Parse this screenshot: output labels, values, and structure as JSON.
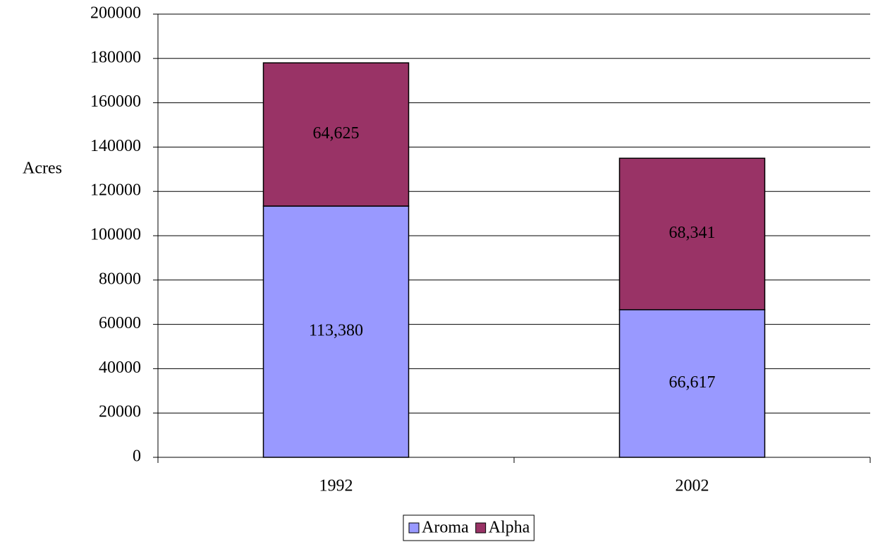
{
  "chart_data": {
    "type": "stacked_bar",
    "y_label": "Acres",
    "categories": [
      "1992",
      "2002"
    ],
    "series": [
      {
        "name": "Aroma",
        "color": "#9999ff",
        "values": [
          113380,
          66617
        ],
        "value_labels": [
          "113,380",
          "66,617"
        ]
      },
      {
        "name": "Alpha",
        "color": "#993366",
        "values": [
          64625,
          68341
        ],
        "value_labels": [
          "64,625",
          "68,341"
        ]
      }
    ],
    "ylim": [
      0,
      200000
    ],
    "yticks": [
      0,
      20000,
      40000,
      60000,
      80000,
      100000,
      120000,
      140000,
      160000,
      180000,
      200000
    ],
    "grid": true,
    "legend": "bottom"
  }
}
